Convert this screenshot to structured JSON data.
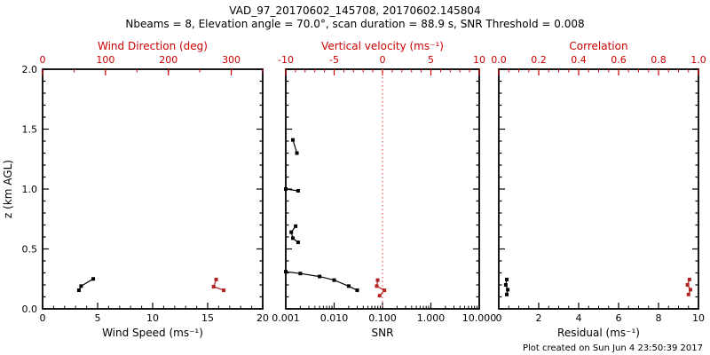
{
  "header": {
    "title": "VAD_97_20170602_145708, 20170602.145804",
    "subtitle": "Nbeams = 8, Elevation angle = 70.0°, scan duration = 88.9 s, SNR Threshold = 0.008"
  },
  "footer": {
    "created": "Plot created on Sun Jun 4 23:50:39 2017"
  },
  "colors": {
    "axis_black": "#000000",
    "axis_red": "#cc0000",
    "data_red": "#b22222",
    "refline_red": "#dd5555"
  },
  "chart_data": [
    {
      "type": "scatter",
      "name": "wind-panel",
      "y_axis": {
        "label": "z (km AGL)",
        "min": 0,
        "max": 2,
        "ticks": [
          0,
          0.5,
          1,
          1.5,
          2
        ],
        "tick_labels": [
          "0.0",
          "0.5",
          "1.0",
          "1.5",
          "2.0"
        ],
        "minor_step": 0.1,
        "show_labels": true
      },
      "bottom_axis": {
        "label": "Wind Speed (ms⁻¹)",
        "min": 0,
        "max": 20,
        "ticks": [
          0,
          5,
          10,
          15,
          20
        ],
        "tick_labels": [
          "0",
          "5",
          "10",
          "15",
          "20"
        ],
        "minor_step": 1,
        "color": "#000000"
      },
      "top_axis": {
        "label": "Wind Direction (deg)",
        "min": 0,
        "max": 350,
        "ticks": [
          0,
          100,
          200,
          300
        ],
        "tick_labels": [
          "0",
          "100",
          "200",
          "300"
        ],
        "minor_step": 50,
        "color": "#cc0000"
      },
      "series": [
        {
          "name": "wind-speed",
          "axis": "bottom",
          "color": "#000000",
          "segments": [
            [
              [
                3.3,
                0.155
              ],
              [
                3.5,
                0.19
              ],
              [
                4.6,
                0.25
              ]
            ]
          ]
        },
        {
          "name": "wind-direction",
          "axis": "top",
          "color": "#b22222",
          "segments": [
            [
              [
                288,
                0.155
              ],
              [
                272,
                0.185
              ],
              [
                276,
                0.245
              ]
            ]
          ]
        }
      ]
    },
    {
      "type": "scatter",
      "name": "snr-panel",
      "bottom_axis": {
        "label": "SNR",
        "min": 0.001,
        "max": 10,
        "log": true,
        "ticks": [
          0.001,
          0.01,
          0.1,
          1,
          10
        ],
        "tick_labels": [
          "0.001",
          "0.010",
          "0.100",
          "1.000",
          "10.000"
        ],
        "color": "#000000"
      },
      "top_axis": {
        "label": "Vertical velocity (ms⁻¹)",
        "min": -10,
        "max": 10,
        "ticks": [
          -10,
          -5,
          0,
          5,
          10
        ],
        "tick_labels": [
          "-10",
          "-5",
          "0",
          "5",
          "10"
        ],
        "minor_step": 1,
        "color": "#cc0000"
      },
      "refline": {
        "axis": "top",
        "value": 0,
        "color": "#dd5555",
        "style": "dotted"
      },
      "series": [
        {
          "name": "snr-profile",
          "axis": "bottom",
          "color": "#000000",
          "segments": [
            [
              [
                0.001,
                0.31
              ],
              [
                0.002,
                0.295
              ],
              [
                0.005,
                0.27
              ],
              [
                0.01,
                0.24
              ],
              [
                0.02,
                0.19
              ],
              [
                0.03,
                0.155
              ]
            ],
            [
              [
                0.0016,
                0.69
              ],
              [
                0.0013,
                0.64
              ],
              [
                0.0014,
                0.59
              ],
              [
                0.0018,
                0.555
              ]
            ],
            [
              [
                0.001,
                1.0
              ],
              [
                0.0018,
                0.985
              ]
            ],
            [
              [
                0.0014,
                1.41
              ],
              [
                0.0017,
                1.3
              ]
            ]
          ]
        },
        {
          "name": "vertical-velocity",
          "axis": "top",
          "color": "#b22222",
          "segments": [
            [
              [
                -0.5,
                0.24
              ],
              [
                -0.6,
                0.19
              ],
              [
                0.2,
                0.155
              ],
              [
                -0.3,
                0.11
              ]
            ]
          ]
        }
      ]
    },
    {
      "type": "scatter",
      "name": "residual-panel",
      "bottom_axis": {
        "label": "Residual (ms⁻¹)",
        "min": 0,
        "max": 10,
        "ticks": [
          0,
          2,
          4,
          6,
          8,
          10
        ],
        "tick_labels": [
          "0",
          "2",
          "4",
          "6",
          "8",
          "10"
        ],
        "minor_step": 0.5,
        "color": "#000000"
      },
      "top_axis": {
        "label": "Correlation",
        "min": 0,
        "max": 1,
        "ticks": [
          0,
          0.2,
          0.4,
          0.6,
          0.8,
          1
        ],
        "tick_labels": [
          "0.0",
          "0.2",
          "0.4",
          "0.6",
          "0.8",
          "1.0"
        ],
        "minor_step": 0.05,
        "color": "#cc0000"
      },
      "series": [
        {
          "name": "residual",
          "axis": "bottom",
          "color": "#000000",
          "segments": [
            [
              [
                0.4,
                0.245
              ],
              [
                0.35,
                0.2
              ],
              [
                0.45,
                0.16
              ],
              [
                0.4,
                0.12
              ]
            ]
          ]
        },
        {
          "name": "correlation",
          "axis": "top",
          "color": "#b22222",
          "segments": [
            [
              [
                0.955,
                0.245
              ],
              [
                0.945,
                0.2
              ],
              [
                0.96,
                0.16
              ],
              [
                0.95,
                0.12
              ]
            ]
          ]
        }
      ]
    }
  ]
}
